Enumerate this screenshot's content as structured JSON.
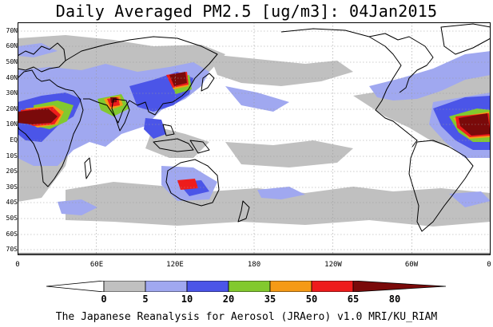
{
  "title": "Daily Averaged PM2.5 [ug/m3]: 04Jan2015",
  "lat_labels": [
    "70N",
    "60N",
    "50N",
    "40N",
    "30N",
    "20N",
    "10N",
    "EQ",
    "10S",
    "20S",
    "30S",
    "40S",
    "50S",
    "60S",
    "70S"
  ],
  "lon_labels": [
    "0",
    "60E",
    "120E",
    "180",
    "120W",
    "60W",
    "0"
  ],
  "colorbar": {
    "levels": [
      "0",
      "5",
      "10",
      "20",
      "35",
      "50",
      "65",
      "80"
    ],
    "colors": [
      "#ffffff",
      "#c0c0c0",
      "#a0a8f0",
      "#4b55e8",
      "#82c92e",
      "#f59a16",
      "#ee1c1c",
      "#7a0a0a"
    ]
  },
  "footer": "The Japanese Reanalysis for Aerosol (JRAero) v1.0 MRI/KU_RIAM",
  "map": {
    "background": "#ffffff",
    "coastline_color": "#000000",
    "grid": true,
    "region": "global 0-360 lon, 75S-75N"
  }
}
